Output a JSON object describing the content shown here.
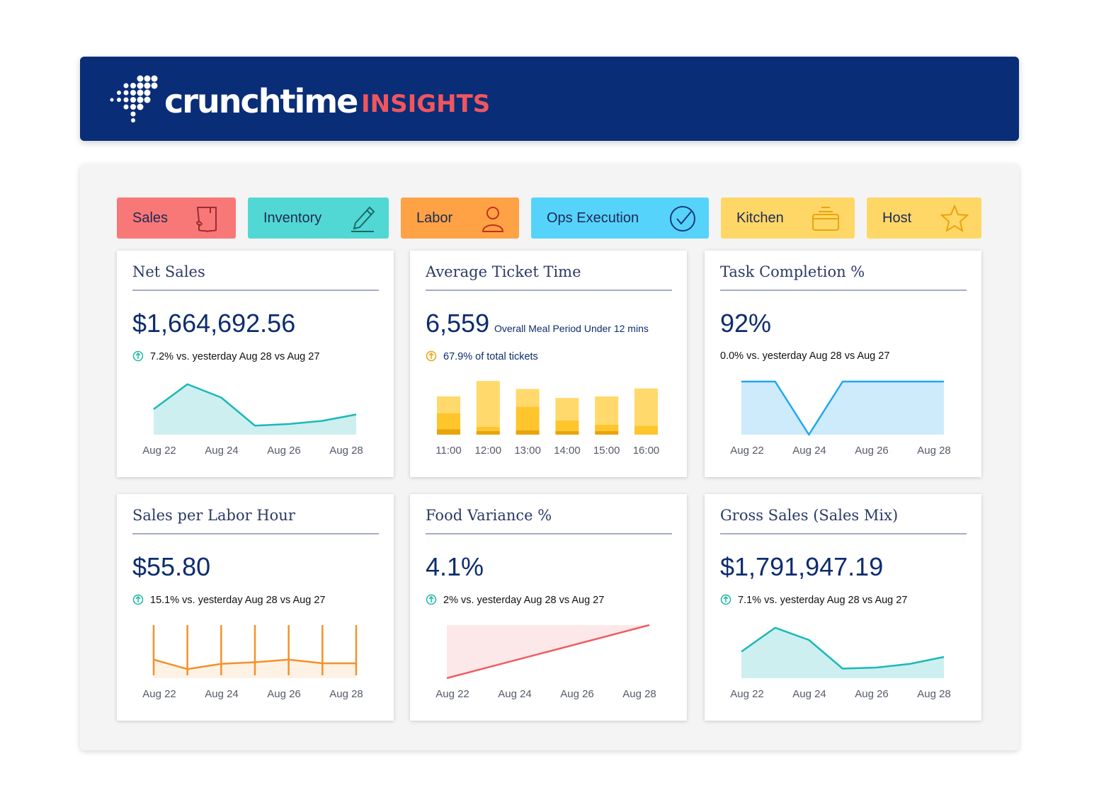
{
  "brand": {
    "name": "crunchtime",
    "product": "INSIGHTS",
    "colors": {
      "header": "#0a2d78",
      "insights": "#f0565e"
    }
  },
  "tabs": [
    {
      "label": "Sales",
      "color": "#f87777",
      "icon": "receipt-icon"
    },
    {
      "label": "Inventory",
      "color": "#52d8d4",
      "icon": "pencil-icon"
    },
    {
      "label": "Labor",
      "color": "#ffa245",
      "icon": "person-icon"
    },
    {
      "label": "Ops Execution",
      "color": "#56d3fb",
      "icon": "check-circle-icon"
    },
    {
      "label": "Kitchen",
      "color": "#ffd767",
      "icon": "pot-icon"
    },
    {
      "label": "Host",
      "color": "#ffd767",
      "icon": "star-icon"
    }
  ],
  "cards": {
    "net_sales": {
      "title": "Net Sales",
      "value": "$1,664,692.56",
      "delta": "7.2% vs. yesterday Aug 28 vs Aug 27"
    },
    "ticket_time": {
      "title": "Average Ticket Time",
      "value": "6,559",
      "subtitle": "Overall Meal Period Under 12 mins",
      "delta": "67.9% of total tickets"
    },
    "task_completion": {
      "title": "Task Completion %",
      "value": "92%",
      "delta": "0.0% vs. yesterday Aug 28 vs Aug 27"
    },
    "splh": {
      "title": "Sales per Labor Hour",
      "value": "$55.80",
      "delta": "15.1% vs. yesterday Aug 28 vs Aug 27"
    },
    "food_variance": {
      "title": "Food Variance %",
      "value": "4.1%",
      "delta": "2% vs. yesterday Aug 28 vs Aug 27"
    },
    "gross_sales": {
      "title": "Gross Sales (Sales Mix)",
      "value": "$1,791,947.19",
      "delta": "7.1% vs. yesterday Aug 28 vs Aug 27"
    }
  },
  "chart_data": [
    {
      "type": "area",
      "card": "net_sales",
      "x": [
        "Aug 22",
        "Aug 23",
        "Aug 24",
        "Aug 25",
        "Aug 26",
        "Aug 27",
        "Aug 28"
      ],
      "tick_labels": [
        "Aug 22",
        "Aug 24",
        "Aug 26",
        "Aug 28"
      ],
      "values": [
        48,
        95,
        70,
        17,
        20,
        26,
        38
      ],
      "ylim": [
        0,
        100
      ],
      "color": "#1bb8b8"
    },
    {
      "type": "bar",
      "card": "ticket_time",
      "categories": [
        "11:00",
        "12:00",
        "13:00",
        "14:00",
        "15:00",
        "16:00"
      ],
      "series": [
        {
          "values": [
            10,
            7,
            8,
            7,
            7,
            0
          ],
          "color": "#e9a40b"
        },
        {
          "values": [
            30,
            8,
            45,
            20,
            12,
            17
          ],
          "color": "#ffc52d"
        },
        {
          "values": [
            32,
            86,
            33,
            42,
            53,
            70
          ],
          "color": "#ffd96b"
        }
      ],
      "ylim": [
        0,
        100
      ]
    },
    {
      "type": "area",
      "card": "task_completion",
      "x": [
        "Aug 22",
        "Aug 23",
        "Aug 24",
        "Aug 25",
        "Aug 26",
        "Aug 27",
        "Aug 28"
      ],
      "tick_labels": [
        "Aug 22",
        "Aug 24",
        "Aug 26",
        "Aug 28"
      ],
      "values": [
        100,
        100,
        0,
        100,
        100,
        100,
        100
      ],
      "ylim": [
        0,
        100
      ],
      "color": "#20a6f0"
    },
    {
      "type": "line",
      "card": "splh",
      "x": [
        "Aug 22",
        "Aug 23",
        "Aug 24",
        "Aug 25",
        "Aug 26",
        "Aug 27",
        "Aug 28"
      ],
      "tick_labels": [
        "Aug 22",
        "Aug 24",
        "Aug 26",
        "Aug 28"
      ],
      "values": [
        35,
        17,
        27,
        30,
        35,
        28,
        28
      ],
      "ylim": [
        0,
        100
      ],
      "color": "#f3912a"
    },
    {
      "type": "line",
      "card": "food_variance",
      "x": [
        "Aug 22",
        "Aug 28"
      ],
      "tick_labels": [
        "Aug 22",
        "Aug 24",
        "Aug 26",
        "Aug 28"
      ],
      "values": [
        0,
        100
      ],
      "ylim": [
        0,
        100
      ],
      "color": "#ee5d62"
    },
    {
      "type": "area",
      "card": "gross_sales",
      "x": [
        "Aug 22",
        "Aug 23",
        "Aug 24",
        "Aug 25",
        "Aug 26",
        "Aug 27",
        "Aug 28"
      ],
      "tick_labels": [
        "Aug 22",
        "Aug 24",
        "Aug 26",
        "Aug 28"
      ],
      "values": [
        50,
        95,
        72,
        18,
        20,
        27,
        40
      ],
      "ylim": [
        0,
        100
      ],
      "color": "#1bb8b8"
    }
  ]
}
